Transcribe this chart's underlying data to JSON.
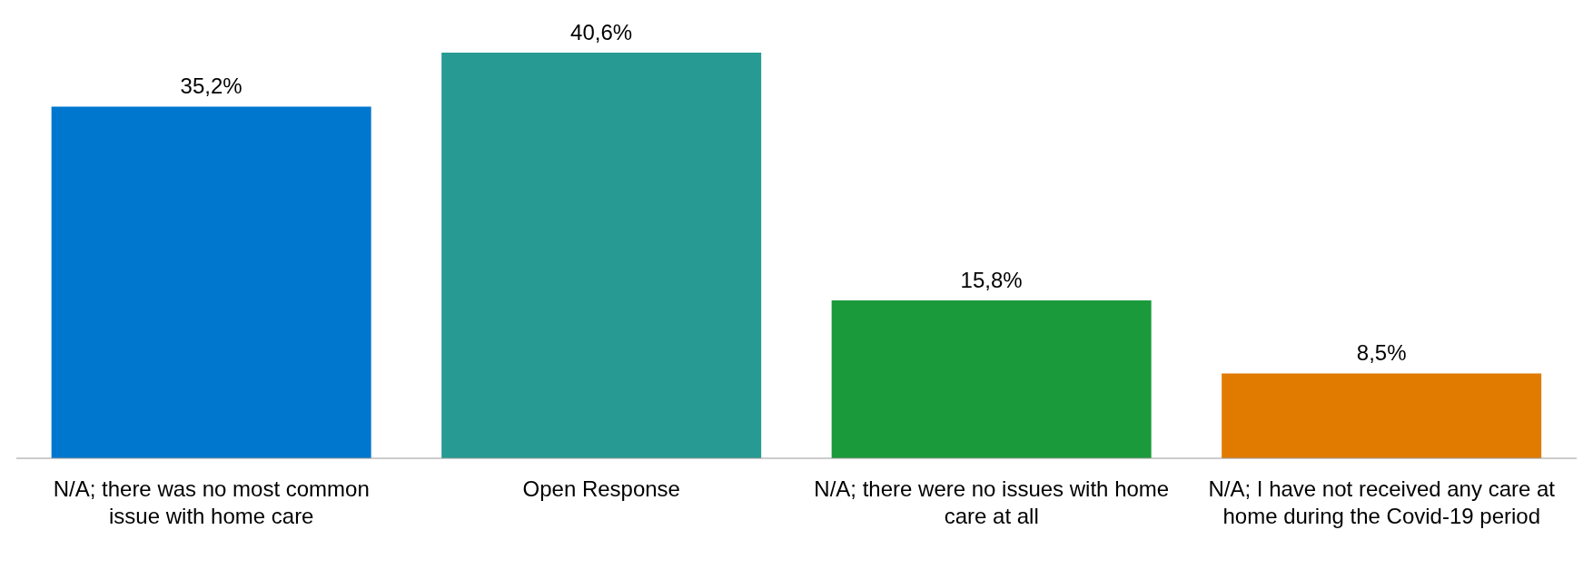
{
  "chart_data": {
    "type": "bar",
    "categories": [
      "N/A; there was no most common issue with home care",
      "Open Response",
      "N/A; there were no issues with home care at all",
      "N/A; I have not received any care at home during the Covid-19 period"
    ],
    "values": [
      35.2,
      40.6,
      15.8,
      8.5
    ],
    "colors": [
      "#0077cf",
      "#279b93",
      "#1a9a3b",
      "#e07b00"
    ],
    "value_labels": [
      "35,2%",
      "40,6%",
      "15,8%",
      "8,5%"
    ]
  }
}
